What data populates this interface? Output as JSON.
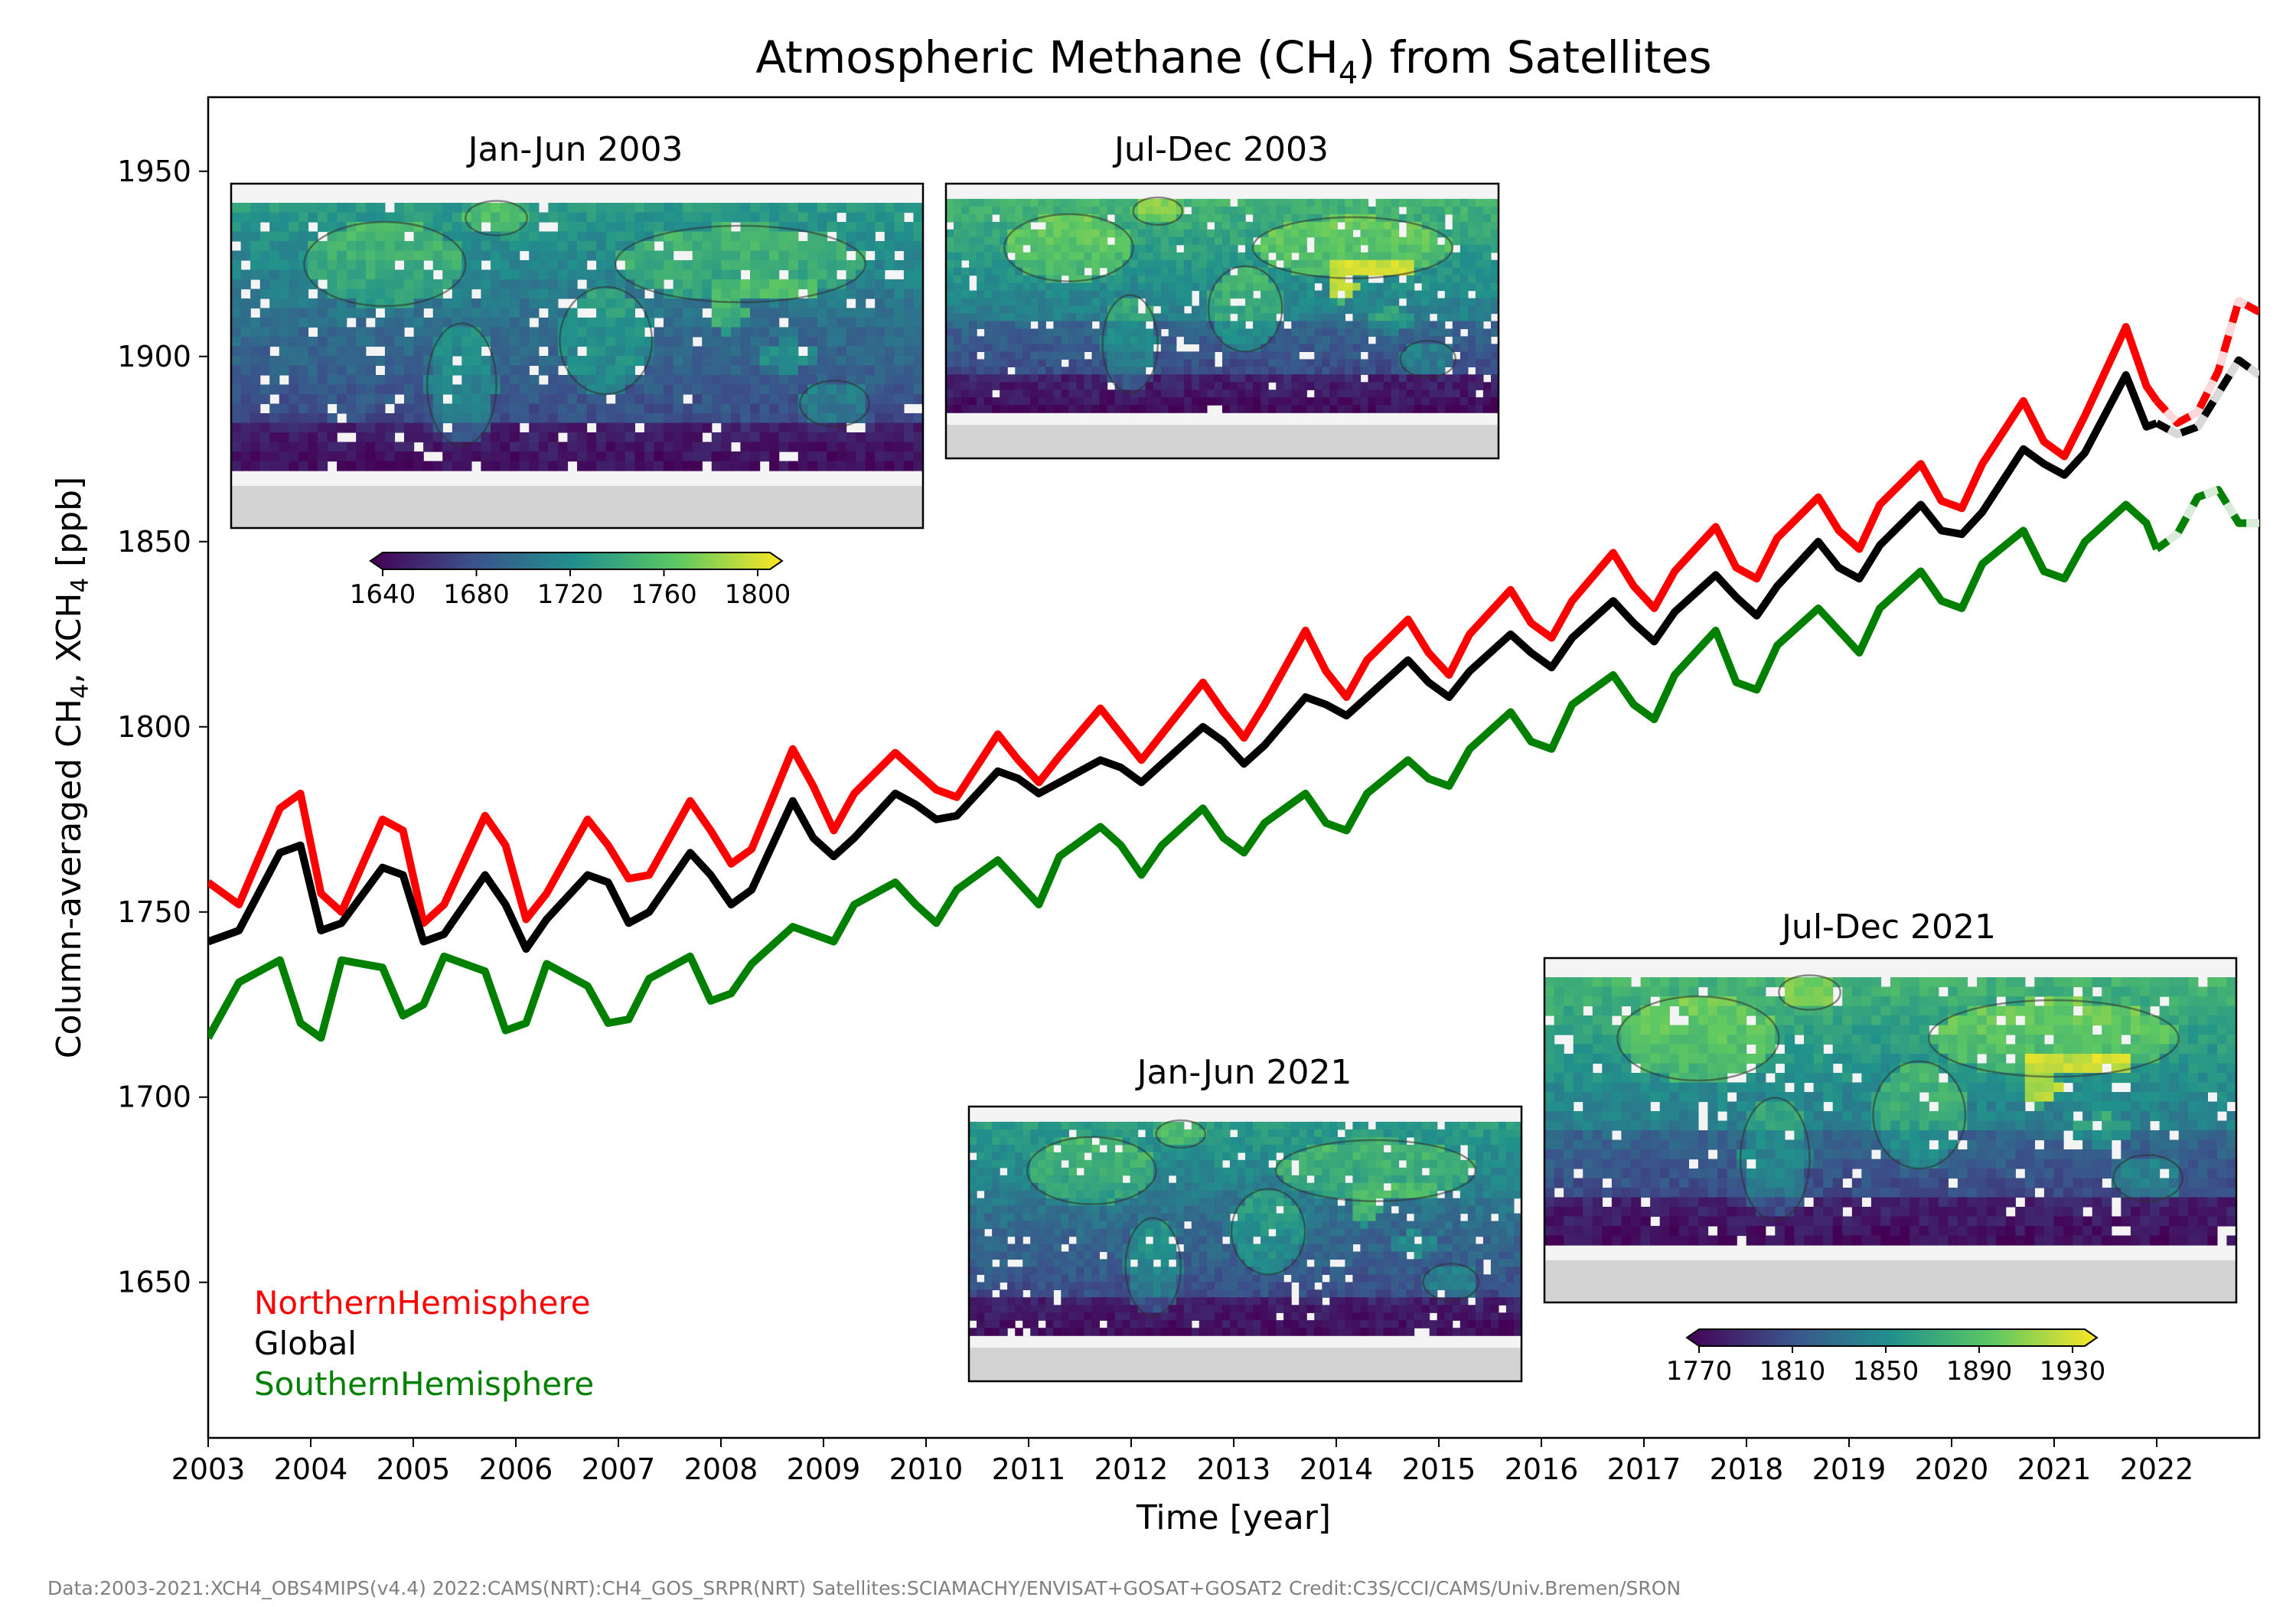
{
  "chart_data": {
    "type": "line",
    "title_main": "Atmospheric Methane (CH",
    "title_sub": "4",
    "title_tail": ") from Satellites",
    "xlabel": "Time [year]",
    "ylabel_parts": [
      "Column-averaged CH",
      "4",
      ", XCH",
      "4",
      " [ppb]"
    ],
    "xlim": [
      2003,
      2023
    ],
    "ylim": [
      1608,
      1970
    ],
    "x_ticks": [
      2003,
      2004,
      2005,
      2006,
      2007,
      2008,
      2009,
      2010,
      2011,
      2012,
      2013,
      2014,
      2015,
      2016,
      2017,
      2018,
      2019,
      2020,
      2021,
      2022
    ],
    "y_ticks": [
      1650,
      1700,
      1750,
      1800,
      1850,
      1900,
      1950
    ],
    "legend": [
      "NorthernHemisphere",
      "Global",
      "SouthernHemisphere"
    ],
    "colors": {
      "north": "#ff0000",
      "global": "#000000",
      "south": "#008000"
    },
    "series": [
      {
        "name": "NorthernHemisphere",
        "x": [
          2003.0,
          2003.3,
          2003.7,
          2003.9,
          2004.1,
          2004.3,
          2004.7,
          2004.9,
          2005.1,
          2005.3,
          2005.7,
          2005.9,
          2006.1,
          2006.3,
          2006.7,
          2006.9,
          2007.1,
          2007.3,
          2007.7,
          2007.9,
          2008.1,
          2008.3,
          2008.7,
          2008.9,
          2009.1,
          2009.3,
          2009.7,
          2009.9,
          2010.1,
          2010.3,
          2010.7,
          2010.9,
          2011.1,
          2011.3,
          2011.7,
          2011.9,
          2012.1,
          2012.3,
          2012.7,
          2012.9,
          2013.1,
          2013.3,
          2013.7,
          2013.9,
          2014.1,
          2014.3,
          2014.7,
          2014.9,
          2015.1,
          2015.3,
          2015.7,
          2015.9,
          2016.1,
          2016.3,
          2016.7,
          2016.9,
          2017.1,
          2017.3,
          2017.7,
          2017.9,
          2018.1,
          2018.3,
          2018.7,
          2018.9,
          2019.1,
          2019.3,
          2019.7,
          2019.9,
          2020.1,
          2020.3,
          2020.7,
          2020.9,
          2021.1,
          2021.3,
          2021.7,
          2021.9,
          2022.0,
          2022.2,
          2022.4,
          2022.6,
          2022.8,
          2023.0
        ],
        "values": [
          1758,
          1752,
          1778,
          1782,
          1755,
          1750,
          1775,
          1772,
          1747,
          1752,
          1776,
          1768,
          1748,
          1755,
          1775,
          1768,
          1759,
          1760,
          1780,
          1772,
          1763,
          1767,
          1794,
          1784,
          1772,
          1782,
          1793,
          1788,
          1783,
          1781,
          1798,
          1791,
          1785,
          1792,
          1805,
          1798,
          1791,
          1798,
          1812,
          1804,
          1797,
          1806,
          1826,
          1815,
          1808,
          1818,
          1829,
          1820,
          1814,
          1825,
          1837,
          1828,
          1824,
          1834,
          1847,
          1838,
          1832,
          1842,
          1854,
          1843,
          1840,
          1851,
          1862,
          1853,
          1848,
          1860,
          1871,
          1861,
          1859,
          1871,
          1888,
          1877,
          1873,
          1884,
          1908,
          1892,
          1888,
          1882,
          1885,
          1896,
          1915,
          1912
        ]
      },
      {
        "name": "Global",
        "x": [
          2003.0,
          2003.3,
          2003.7,
          2003.9,
          2004.1,
          2004.3,
          2004.7,
          2004.9,
          2005.1,
          2005.3,
          2005.7,
          2005.9,
          2006.1,
          2006.3,
          2006.7,
          2006.9,
          2007.1,
          2007.3,
          2007.7,
          2007.9,
          2008.1,
          2008.3,
          2008.7,
          2008.9,
          2009.1,
          2009.3,
          2009.7,
          2009.9,
          2010.1,
          2010.3,
          2010.7,
          2010.9,
          2011.1,
          2011.3,
          2011.7,
          2011.9,
          2012.1,
          2012.3,
          2012.7,
          2012.9,
          2013.1,
          2013.3,
          2013.7,
          2013.9,
          2014.1,
          2014.3,
          2014.7,
          2014.9,
          2015.1,
          2015.3,
          2015.7,
          2015.9,
          2016.1,
          2016.3,
          2016.7,
          2016.9,
          2017.1,
          2017.3,
          2017.7,
          2017.9,
          2018.1,
          2018.3,
          2018.7,
          2018.9,
          2019.1,
          2019.3,
          2019.7,
          2019.9,
          2020.1,
          2020.3,
          2020.7,
          2020.9,
          2021.1,
          2021.3,
          2021.7,
          2021.9,
          2022.0,
          2022.2,
          2022.4,
          2022.6,
          2022.8,
          2023.0
        ],
        "values": [
          1742,
          1745,
          1766,
          1768,
          1745,
          1747,
          1762,
          1760,
          1742,
          1744,
          1760,
          1752,
          1740,
          1748,
          1760,
          1758,
          1747,
          1750,
          1766,
          1760,
          1752,
          1756,
          1780,
          1770,
          1765,
          1770,
          1782,
          1779,
          1775,
          1776,
          1788,
          1786,
          1782,
          1785,
          1791,
          1789,
          1785,
          1790,
          1800,
          1796,
          1790,
          1795,
          1808,
          1806,
          1803,
          1808,
          1818,
          1812,
          1808,
          1815,
          1825,
          1820,
          1816,
          1824,
          1834,
          1828,
          1823,
          1831,
          1841,
          1835,
          1830,
          1838,
          1850,
          1843,
          1840,
          1849,
          1860,
          1853,
          1852,
          1858,
          1875,
          1871,
          1868,
          1874,
          1895,
          1881,
          1882,
          1879,
          1881,
          1890,
          1899,
          1895
        ]
      },
      {
        "name": "SouthernHemisphere",
        "x": [
          2003.0,
          2003.3,
          2003.7,
          2003.9,
          2004.1,
          2004.3,
          2004.7,
          2004.9,
          2005.1,
          2005.3,
          2005.7,
          2005.9,
          2006.1,
          2006.3,
          2006.7,
          2006.9,
          2007.1,
          2007.3,
          2007.7,
          2007.9,
          2008.1,
          2008.3,
          2008.7,
          2008.9,
          2009.1,
          2009.3,
          2009.7,
          2009.9,
          2010.1,
          2010.3,
          2010.7,
          2010.9,
          2011.1,
          2011.3,
          2011.7,
          2011.9,
          2012.1,
          2012.3,
          2012.7,
          2012.9,
          2013.1,
          2013.3,
          2013.7,
          2013.9,
          2014.1,
          2014.3,
          2014.7,
          2014.9,
          2015.1,
          2015.3,
          2015.7,
          2015.9,
          2016.1,
          2016.3,
          2016.7,
          2016.9,
          2017.1,
          2017.3,
          2017.7,
          2017.9,
          2018.1,
          2018.3,
          2018.7,
          2018.9,
          2019.1,
          2019.3,
          2019.7,
          2019.9,
          2020.1,
          2020.3,
          2020.7,
          2020.9,
          2021.1,
          2021.3,
          2021.7,
          2021.9,
          2022.0,
          2022.2,
          2022.4,
          2022.6,
          2022.8,
          2023.0
        ],
        "values": [
          1716,
          1731,
          1737,
          1720,
          1716,
          1737,
          1735,
          1722,
          1725,
          1738,
          1734,
          1718,
          1720,
          1736,
          1730,
          1720,
          1721,
          1732,
          1738,
          1726,
          1728,
          1736,
          1746,
          1744,
          1742,
          1752,
          1758,
          1752,
          1747,
          1756,
          1764,
          1758,
          1752,
          1765,
          1773,
          1768,
          1760,
          1768,
          1778,
          1770,
          1766,
          1774,
          1782,
          1774,
          1772,
          1782,
          1791,
          1786,
          1784,
          1794,
          1804,
          1796,
          1794,
          1806,
          1814,
          1806,
          1802,
          1814,
          1826,
          1812,
          1810,
          1822,
          1832,
          1826,
          1820,
          1832,
          1842,
          1834,
          1832,
          1844,
          1853,
          1842,
          1840,
          1850,
          1860,
          1855,
          1848,
          1852,
          1862,
          1864,
          1855,
          1855
        ]
      }
    ],
    "nrt_from": 2022.0,
    "insets": [
      {
        "title": "Jan-Jun 2003",
        "bias": 0
      },
      {
        "title": "Jul-Dec 2003",
        "bias": 1
      },
      {
        "title": "Jan-Jun 2021",
        "bias": 0
      },
      {
        "title": "Jul-Dec 2021",
        "bias": 1
      }
    ],
    "colorbars": [
      {
        "ticks": [
          "1640",
          "1680",
          "1720",
          "1760",
          "1800"
        ]
      },
      {
        "ticks": [
          "1770",
          "1810",
          "1850",
          "1890",
          "1930"
        ]
      }
    ],
    "credit": "Data:2003-2021:XCH4_OBS4MIPS(v4.4) 2022:CAMS(NRT):CH4_GOS_SRPR(NRT)  Satellites:SCIAMACHY/ENVISAT+GOSAT+GOSAT2  Credit:C3S/CCI/CAMS/Univ.Bremen/SRON"
  }
}
